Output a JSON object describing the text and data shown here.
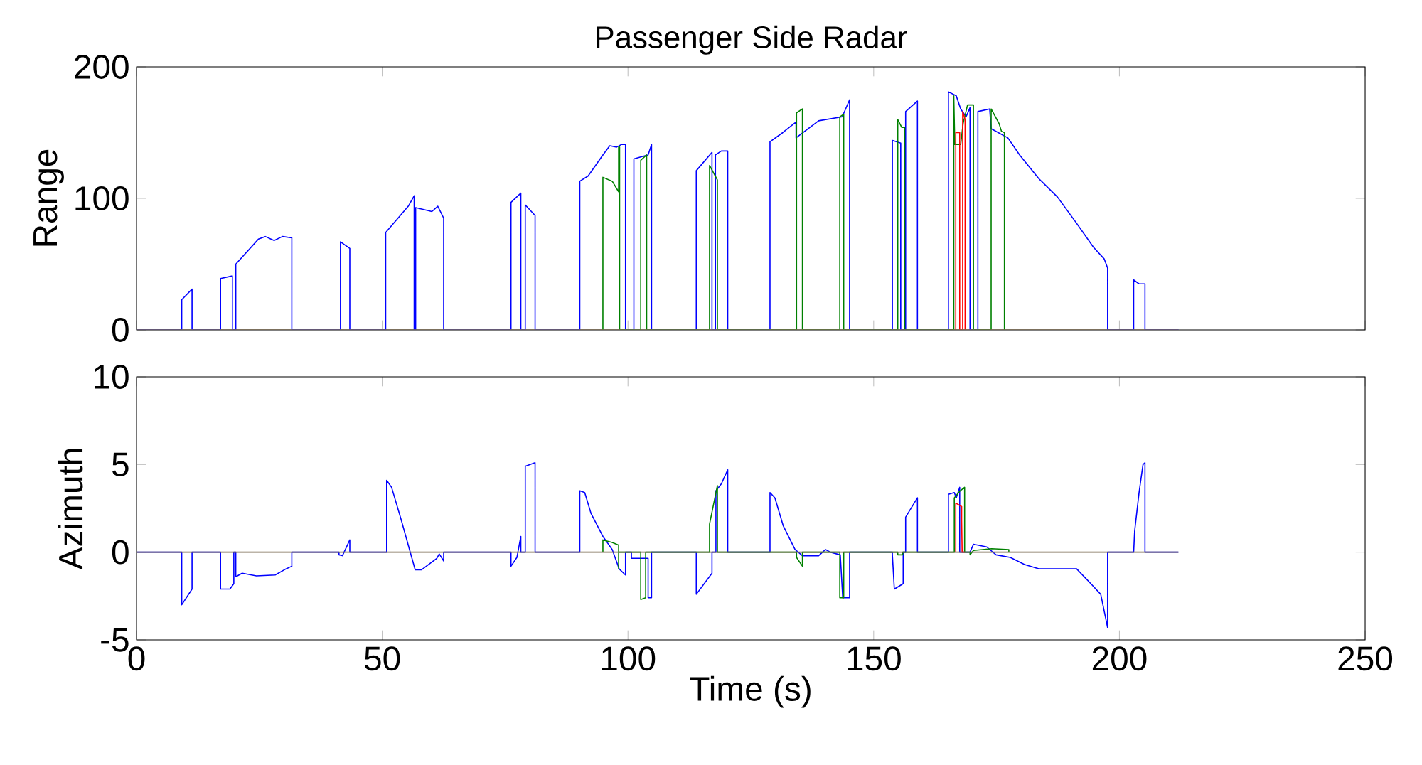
{
  "chart_data": [
    {
      "type": "line",
      "title": "Passenger Side Radar",
      "ylabel": "Range",
      "xlim": [
        0,
        250
      ],
      "ylim": [
        0,
        200
      ],
      "xticks": [
        0,
        50,
        100,
        150,
        200,
        250
      ],
      "yticks": [
        0,
        100,
        200
      ],
      "tick_labels": "y",
      "series": [
        {
          "color": "#0000ff",
          "x": [
            0,
            9.2,
            9.2,
            11.3,
            11.3,
            17.1,
            17.1,
            19.5,
            19.5,
            20.2,
            20.2,
            24.8,
            26.2,
            28.0,
            29.7,
            31.6,
            31.6,
            41.5,
            41.5,
            43.4,
            43.4,
            50.7,
            50.7,
            55.3,
            56.5,
            56.5,
            56.8,
            56.8,
            60.1,
            61.3,
            62.5,
            62.5,
            76.2,
            76.2,
            78.2,
            78.2,
            79.1,
            79.1,
            81.1,
            81.1,
            90.2,
            90.2,
            91.9,
            94.9,
            96.3,
            97.7,
            98.7,
            99.5,
            99.5,
            101.2,
            101.2,
            103.1,
            104.1,
            104.8,
            104.8,
            113.9,
            113.9,
            117.1,
            117.1,
            117.8,
            117.8,
            119.0,
            120.3,
            120.3,
            128.9,
            128.9,
            131.5,
            134.2,
            134.2,
            138.8,
            143.6,
            145.1,
            145.1,
            153.8,
            153.8,
            155.5,
            155.5,
            156.5,
            156.5,
            158.9,
            158.9,
            165.2,
            165.2,
            166.8,
            167.7,
            168.8,
            169.6,
            169.6,
            171.2,
            171.2,
            173.6,
            173.9,
            177.3,
            179.7,
            183.6,
            187.4,
            191.3,
            194.7,
            196.9,
            197.6,
            197.6,
            202.9,
            202.9,
            204.0,
            205.2,
            205.2,
            212
          ],
          "values": [
            0,
            0,
            23,
            31,
            0,
            0,
            39,
            41,
            0,
            0,
            50,
            69,
            71,
            68,
            71,
            70,
            0,
            0,
            67,
            62,
            0,
            0,
            74,
            94,
            102,
            0,
            0,
            93,
            90,
            94,
            85,
            0,
            0,
            97,
            104,
            0,
            0,
            95,
            87,
            0,
            0,
            113,
            117,
            133,
            140,
            139,
            141,
            141,
            0,
            0,
            130,
            132,
            133,
            141,
            0,
            0,
            121,
            135,
            0,
            0,
            133,
            136,
            136,
            0,
            0,
            143,
            150,
            158,
            146,
            159,
            162,
            175,
            0,
            0,
            144,
            142,
            0,
            0,
            166,
            174,
            0,
            0,
            181,
            178,
            168,
            162,
            169,
            0,
            0,
            166,
            168,
            153,
            146,
            133,
            115,
            101,
            81,
            63,
            54,
            47,
            0,
            0,
            38,
            35,
            35,
            0,
            0
          ]
        },
        {
          "color": "#008000",
          "x": [
            94.9,
            94.9,
            96.8,
            98.1,
            98.1,
            98.3,
            98.3,
            102.6,
            102.6,
            103.8,
            103.8,
            116.6,
            116.6,
            118.2,
            118.2,
            134.3,
            134.3,
            135.5,
            135.5,
            143.1,
            143.1,
            143.9,
            143.9,
            154.9,
            154.9,
            155.7,
            156.3,
            156.3,
            166.3,
            166.3,
            166.5,
            167.7,
            168.2,
            169.1,
            170.3,
            170.3,
            173.9,
            173.9,
            175.5,
            176.0,
            176.6,
            176.6
          ],
          "values": [
            0,
            116,
            113,
            105,
            139,
            139,
            0,
            0,
            129,
            133,
            0,
            0,
            125,
            114,
            0,
            0,
            165,
            168,
            0,
            0,
            162,
            164,
            0,
            0,
            160,
            154,
            154,
            0,
            0,
            178,
            141,
            141,
            157,
            171,
            171,
            0,
            0,
            168,
            157,
            151,
            150,
            0
          ]
        },
        {
          "color": "#ff0000",
          "x": [
            166.7,
            166.7,
            167.5,
            167.5,
            168.1,
            168.1,
            168.6,
            168.6
          ],
          "values": [
            0,
            150,
            150,
            0,
            0,
            166,
            160,
            0
          ]
        },
        {
          "color": "#7b6b52",
          "x": [
            0,
            212
          ],
          "values": [
            0,
            0
          ]
        }
      ]
    },
    {
      "type": "line",
      "ylabel": "Azimuth",
      "xlabel": "Time (s)",
      "xlim": [
        0,
        250
      ],
      "ylim": [
        -5,
        10
      ],
      "xticks": [
        0,
        50,
        100,
        150,
        200,
        250
      ],
      "yticks": [
        -5,
        0,
        5,
        10
      ],
      "series": [
        {
          "color": "#0000ff",
          "x": [
            0,
            9.2,
            9.2,
            11.3,
            11.3,
            17.1,
            17.1,
            19.0,
            19.8,
            19.8,
            20.2,
            20.2,
            21.5,
            24.4,
            28.2,
            30.1,
            31.6,
            31.6,
            41.2,
            41.2,
            41.9,
            43.4,
            43.4,
            50.9,
            50.9,
            51.9,
            53.8,
            55.6,
            56.7,
            58.0,
            61.1,
            61.6,
            62.5,
            62.5,
            76.2,
            76.2,
            77.4,
            78.2,
            78.2,
            79.1,
            79.1,
            81.1,
            81.1,
            90.2,
            90.2,
            91.2,
            92.5,
            94.9,
            96.8,
            98.2,
            99.5,
            99.5,
            100.7,
            100.7,
            104.1,
            104.1,
            104.8,
            104.8,
            113.9,
            113.9,
            117.1,
            117.1,
            117.9,
            117.9,
            119.0,
            120.3,
            120.3,
            128.9,
            128.9,
            129.9,
            131.6,
            134.0,
            135.5,
            138.8,
            140.2,
            141.2,
            143.2,
            143.7,
            145.1,
            145.1,
            153.8,
            153.8,
            154.2,
            156.0,
            156.0,
            156.5,
            156.5,
            158.9,
            158.9,
            165.2,
            165.2,
            166.4,
            166.8,
            167.5,
            167.5,
            169.6,
            170.3,
            173.0,
            174.9,
            177.8,
            180.7,
            183.6,
            187.4,
            191.3,
            194.2,
            196.2,
            197.6,
            197.6,
            202.9,
            203.1,
            204.0,
            204.8,
            205.2,
            205.2,
            212
          ],
          "values": [
            0,
            0,
            -3.0,
            -2.1,
            0,
            0,
            -2.1,
            -2.1,
            -1.8,
            0,
            0,
            -1.4,
            -1.2,
            -1.35,
            -1.3,
            -1.0,
            -0.8,
            0,
            0,
            -0.15,
            -0.2,
            0.7,
            0,
            0,
            4.1,
            3.7,
            1.9,
            0.1,
            -1.0,
            -1.0,
            -0.35,
            -0.1,
            -0.5,
            0,
            0,
            -0.8,
            -0.3,
            0.9,
            0,
            0,
            4.9,
            5.1,
            0,
            0,
            3.5,
            3.4,
            2.2,
            0.9,
            0.15,
            -0.95,
            -1.3,
            0,
            0,
            -0.35,
            -0.35,
            -2.6,
            -2.6,
            0,
            0,
            -2.4,
            -1.2,
            0,
            0,
            3.5,
            3.9,
            4.7,
            0,
            0,
            3.4,
            3.1,
            1.5,
            0.15,
            -0.2,
            -0.2,
            0.15,
            0,
            -0.15,
            -2.6,
            -2.6,
            0,
            0,
            -0.15,
            -2.1,
            -1.8,
            0,
            0,
            2.0,
            3.1,
            0,
            0,
            3.3,
            3.4,
            3.1,
            3.7,
            0,
            0,
            0.45,
            0.3,
            -0.15,
            -0.3,
            -0.7,
            -0.95,
            -0.95,
            -0.95,
            -1.8,
            -2.4,
            -4.3,
            0,
            0,
            1.2,
            3.4,
            5.0,
            5.1,
            0,
            0
          ]
        },
        {
          "color": "#008000",
          "x": [
            94.9,
            94.9,
            96.8,
            98.1,
            98.1,
            98.1,
            102.6,
            102.6,
            103.6,
            103.6,
            116.6,
            116.6,
            118.2,
            118.2,
            134.3,
            134.3,
            135.5,
            135.5,
            143.1,
            143.1,
            143.9,
            143.9,
            154.9,
            154.9,
            155.9,
            155.9,
            166.4,
            166.4,
            167.6,
            168.5,
            168.5,
            169.6,
            169.6,
            170.3,
            174.0,
            177.5,
            177.5
          ],
          "values": [
            0,
            0.7,
            0.55,
            0.4,
            -0.95,
            0,
            0,
            -2.7,
            -2.6,
            0,
            0,
            1.6,
            3.8,
            0,
            0,
            -0.3,
            -0.8,
            0,
            0,
            -2.6,
            -2.6,
            0,
            0,
            -0.15,
            -0.15,
            0,
            0,
            3.1,
            3.5,
            3.7,
            0,
            0,
            -0.15,
            0.1,
            0.2,
            0.15,
            0
          ]
        },
        {
          "color": "#ff0000",
          "x": [
            166.7,
            166.7,
            167.9,
            167.9,
            168.0,
            168.5
          ],
          "values": [
            0,
            2.8,
            2.6,
            1.8,
            0,
            0
          ]
        },
        {
          "color": "#7b6b52",
          "x": [
            0,
            212
          ],
          "values": [
            0,
            0
          ]
        }
      ]
    }
  ]
}
